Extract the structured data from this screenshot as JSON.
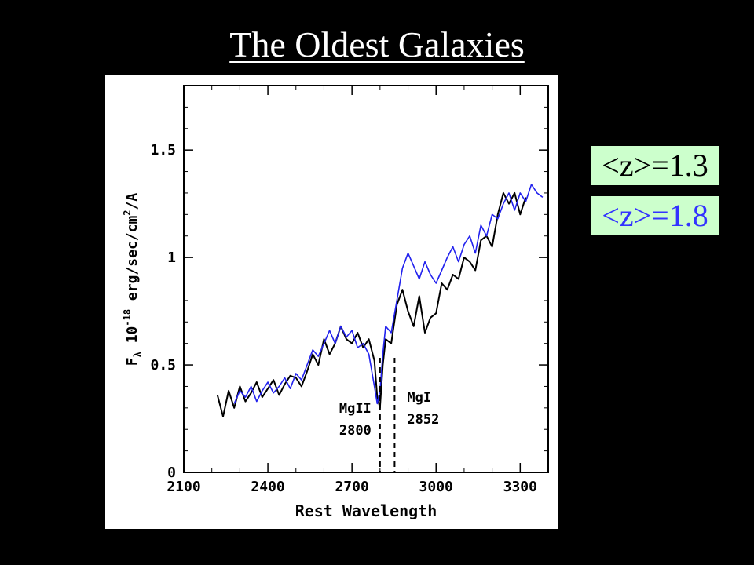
{
  "slide": {
    "title": "The Oldest Galaxies"
  },
  "legend": [
    {
      "label": "<z>=1.3",
      "color": "#000000"
    },
    {
      "label": "<z>=1.8",
      "color": "#3333ff"
    }
  ],
  "chart_data": {
    "type": "line",
    "xlabel": "Rest Wavelength",
    "ylabel_main": "F",
    "ylabel_sub": "λ",
    "ylabel_factor": "10",
    "ylabel_exp": "-18",
    "ylabel_units": "erg/sec/cm",
    "ylabel_units_exp": "2",
    "ylabel_units_tail": "/A",
    "xlim": [
      2100,
      3400
    ],
    "ylim": [
      0,
      1.8
    ],
    "x_ticks": [
      2100,
      2400,
      2700,
      3000,
      3300
    ],
    "y_ticks": [
      0,
      0.5,
      1,
      1.5
    ],
    "y_tick_labels": [
      "0",
      "0.5",
      "1",
      "1.5"
    ],
    "annotations": [
      {
        "line1": "MgII",
        "line2": "2800",
        "x": 2800
      },
      {
        "line1": "MgI",
        "line2": "2852",
        "x": 2852
      }
    ],
    "series": [
      {
        "color": "#000000",
        "x": [
          2220,
          2240,
          2260,
          2280,
          2300,
          2320,
          2340,
          2360,
          2380,
          2400,
          2420,
          2440,
          2460,
          2480,
          2500,
          2520,
          2540,
          2560,
          2580,
          2600,
          2620,
          2640,
          2660,
          2680,
          2700,
          2720,
          2740,
          2760,
          2780,
          2790,
          2800,
          2810,
          2820,
          2840,
          2860,
          2880,
          2900,
          2920,
          2940,
          2960,
          2980,
          3000,
          3020,
          3040,
          3060,
          3080,
          3100,
          3120,
          3140,
          3160,
          3180,
          3200,
          3220,
          3240,
          3260,
          3280,
          3300,
          3320
        ],
        "y": [
          0.36,
          0.26,
          0.38,
          0.3,
          0.4,
          0.33,
          0.37,
          0.42,
          0.35,
          0.39,
          0.43,
          0.36,
          0.41,
          0.45,
          0.44,
          0.4,
          0.47,
          0.55,
          0.5,
          0.62,
          0.55,
          0.6,
          0.68,
          0.62,
          0.6,
          0.65,
          0.58,
          0.62,
          0.52,
          0.35,
          0.3,
          0.5,
          0.62,
          0.6,
          0.78,
          0.85,
          0.75,
          0.68,
          0.82,
          0.65,
          0.72,
          0.74,
          0.88,
          0.85,
          0.92,
          0.9,
          1.0,
          0.98,
          0.94,
          1.08,
          1.1,
          1.05,
          1.2,
          1.3,
          1.25,
          1.3,
          1.2,
          1.28
        ]
      },
      {
        "color": "#2222ee",
        "x": [
          2280,
          2300,
          2320,
          2340,
          2360,
          2380,
          2400,
          2420,
          2440,
          2460,
          2480,
          2500,
          2520,
          2540,
          2560,
          2580,
          2600,
          2620,
          2640,
          2660,
          2680,
          2700,
          2720,
          2740,
          2760,
          2780,
          2790,
          2800,
          2810,
          2820,
          2840,
          2860,
          2880,
          2900,
          2920,
          2940,
          2960,
          2980,
          3000,
          3020,
          3040,
          3060,
          3080,
          3100,
          3120,
          3140,
          3160,
          3180,
          3200,
          3220,
          3240,
          3260,
          3280,
          3300,
          3320,
          3340,
          3360,
          3380
        ],
        "y": [
          0.32,
          0.38,
          0.35,
          0.4,
          0.33,
          0.38,
          0.42,
          0.37,
          0.4,
          0.44,
          0.39,
          0.46,
          0.43,
          0.5,
          0.57,
          0.54,
          0.6,
          0.66,
          0.6,
          0.68,
          0.63,
          0.66,
          0.58,
          0.6,
          0.55,
          0.4,
          0.32,
          0.38,
          0.55,
          0.68,
          0.65,
          0.8,
          0.95,
          1.02,
          0.96,
          0.9,
          0.98,
          0.92,
          0.88,
          0.94,
          1.0,
          1.05,
          0.98,
          1.06,
          1.1,
          1.02,
          1.15,
          1.1,
          1.2,
          1.18,
          1.25,
          1.3,
          1.22,
          1.3,
          1.26,
          1.34,
          1.3,
          1.28
        ]
      }
    ]
  }
}
